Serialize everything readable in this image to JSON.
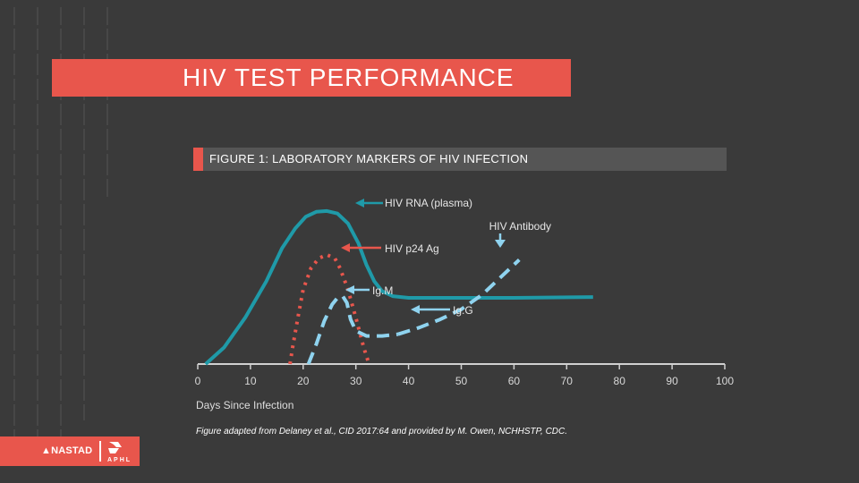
{
  "slide": {
    "title": "HIV TEST PERFORMANCE",
    "figure_title": "FIGURE 1: LABORATORY MARKERS OF HIV INFECTION",
    "xaxis_label": "Days Since Infection",
    "source_note": "Figure adapted from Delaney et al., CID 2017:64 and provided by M. Owen, NCHHSTP, CDC.",
    "logos": {
      "nastad": "NASTAD",
      "aphl": "APHL"
    }
  },
  "colors": {
    "teal": "#1f9aa8",
    "coral": "#e8564c",
    "lightblue": "#8fd3ef",
    "background": "#3a3a3a"
  },
  "chart_data": {
    "type": "line",
    "title": "FIGURE 1: LABORATORY MARKERS OF HIV INFECTION",
    "xlabel": "Days Since Infection",
    "ylabel": "",
    "xlim": [
      0,
      100
    ],
    "xticks": [
      "0",
      "10",
      "20",
      "30",
      "40",
      "50",
      "60",
      "70",
      "80",
      "90",
      "100"
    ],
    "grid": false,
    "series": [
      {
        "name": "HIV RNA (plasma)",
        "style": "solid",
        "color": "#1f9aa8",
        "x": [
          1.5,
          5,
          9,
          13,
          16,
          18.5,
          20.5,
          22.5,
          24.5,
          26.5,
          28.5,
          30.5,
          32,
          33.5,
          35,
          37,
          40,
          45,
          60,
          75
        ],
        "y": [
          0,
          10,
          28,
          50,
          70,
          82,
          89,
          92,
          92.5,
          91,
          85,
          73,
          60,
          50,
          44,
          41,
          40,
          40,
          40,
          40.5
        ]
      },
      {
        "name": "HIV p24 Ag",
        "style": "dotted",
        "color": "#e8564c",
        "x": [
          17.5,
          18,
          19,
          20,
          21.5,
          23,
          24.5,
          26,
          27,
          28.5,
          30,
          31.5,
          32.5
        ],
        "y": [
          0,
          10,
          28,
          45,
          58,
          64,
          66,
          64,
          58,
          45,
          28,
          10,
          0
        ]
      },
      {
        "name": "IgM",
        "style": "dashed",
        "color": "#8fd3ef",
        "x": [
          21,
          22.5,
          24,
          25.5,
          26.5,
          27.5,
          28.3,
          29,
          30,
          32,
          35,
          38
        ],
        "y": [
          0,
          12,
          26,
          36,
          40,
          41,
          37,
          27,
          20,
          17,
          17,
          18
        ]
      },
      {
        "name": "IgG",
        "style": "dashed",
        "color": "#8fd3ef",
        "x": [
          38,
          42,
          46,
          50,
          54,
          58,
          61
        ],
        "y": [
          18,
          22,
          27,
          33,
          42,
          54,
          63
        ]
      }
    ],
    "annotations": [
      {
        "text": "HIV RNA (plasma)",
        "color": "#1f9aa8"
      },
      {
        "text": "HIV Antibody",
        "color": "#8fd3ef"
      },
      {
        "text": "HIV p24 Ag",
        "color": "#e8564c"
      },
      {
        "text": "Ig.M",
        "color": "#8fd3ef"
      },
      {
        "text": "Ig.G",
        "color": "#8fd3ef"
      }
    ]
  }
}
